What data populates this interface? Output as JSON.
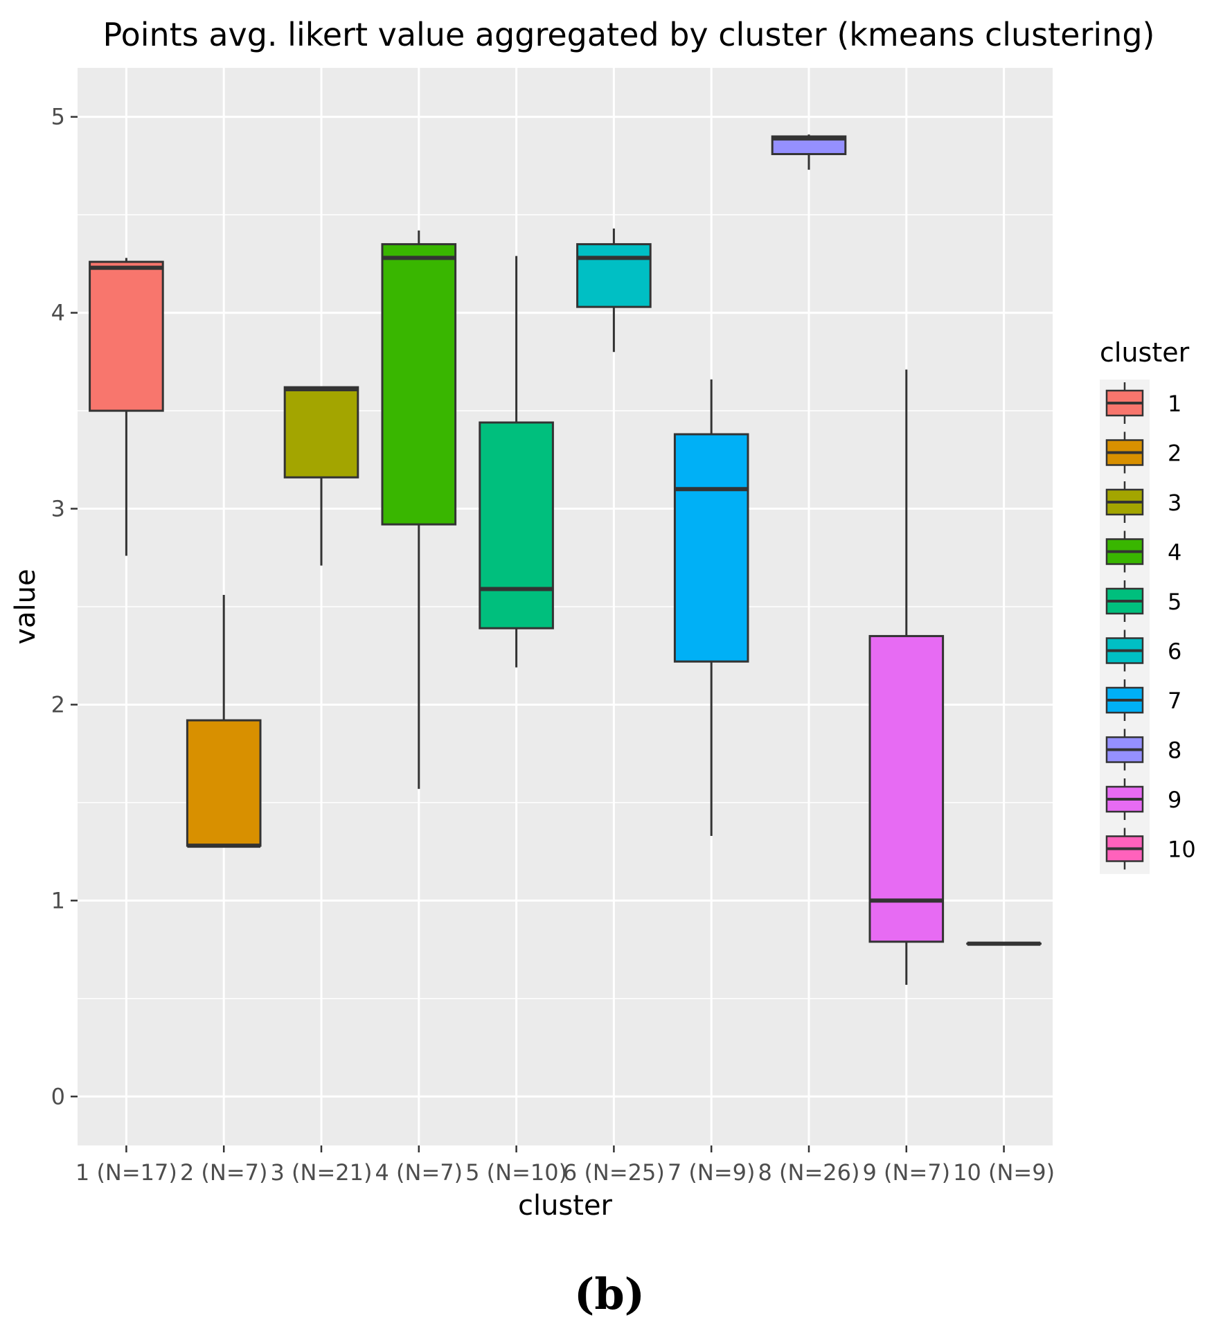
{
  "chart_data": {
    "type": "boxplot",
    "title": "Points avg. likert value aggregated by cluster (kmeans clustering)",
    "xlabel": "cluster",
    "ylabel": "value",
    "ylim": [
      -0.25,
      5.25
    ],
    "yticks": [
      0,
      1,
      2,
      3,
      4,
      5
    ],
    "grid": true,
    "categories": [
      "1 (N=17)",
      "2 (N=7)",
      "3 (N=21)",
      "4 (N=7)",
      "5 (N=10)",
      "6 (N=25)",
      "7 (N=9)",
      "8 (N=26)",
      "9 (N=7)",
      "10 (N=9)"
    ],
    "boxes": [
      {
        "cluster": "1",
        "min": 2.76,
        "q1": 3.5,
        "median": 4.23,
        "q3": 4.26,
        "max": 4.28,
        "color": "#F8766D"
      },
      {
        "cluster": "2",
        "min": 1.28,
        "q1": 1.28,
        "median": 1.28,
        "q3": 1.92,
        "max": 2.56,
        "color": "#D89000"
      },
      {
        "cluster": "3",
        "min": 2.71,
        "q1": 3.16,
        "median": 3.61,
        "q3": 3.62,
        "max": 3.62,
        "color": "#A3A500"
      },
      {
        "cluster": "4",
        "min": 1.57,
        "q1": 2.92,
        "median": 4.28,
        "q3": 4.35,
        "max": 4.42,
        "color": "#39B600"
      },
      {
        "cluster": "5",
        "min": 2.19,
        "q1": 2.39,
        "median": 2.59,
        "q3": 3.44,
        "max": 4.29,
        "color": "#00BF7D"
      },
      {
        "cluster": "6",
        "min": 3.8,
        "q1": 4.03,
        "median": 4.28,
        "q3": 4.35,
        "max": 4.43,
        "color": "#00BFC4"
      },
      {
        "cluster": "7",
        "min": 1.33,
        "q1": 2.22,
        "median": 3.1,
        "q3": 3.38,
        "max": 3.66,
        "color": "#00B0F6"
      },
      {
        "cluster": "8",
        "min": 4.73,
        "q1": 4.81,
        "median": 4.89,
        "q3": 4.9,
        "max": 4.91,
        "color": "#9590FF"
      },
      {
        "cluster": "9",
        "min": 0.57,
        "q1": 0.79,
        "median": 1.0,
        "q3": 2.35,
        "max": 3.71,
        "color": "#E76BF3"
      },
      {
        "cluster": "10",
        "min": 0.78,
        "q1": 0.78,
        "median": 0.78,
        "q3": 0.78,
        "max": 0.78,
        "color": "#FF62BC"
      }
    ],
    "legend": {
      "title": "cluster",
      "position": "right",
      "entries": [
        "1",
        "2",
        "3",
        "4",
        "5",
        "6",
        "7",
        "8",
        "9",
        "10"
      ]
    }
  },
  "caption": "(b)"
}
